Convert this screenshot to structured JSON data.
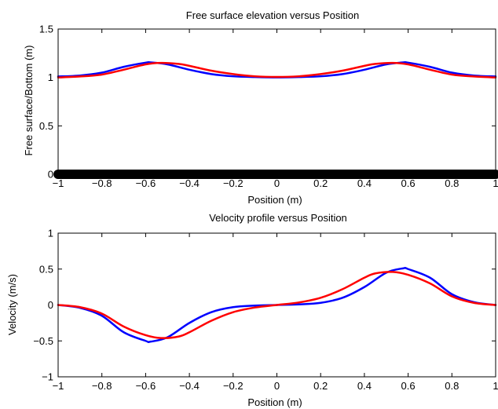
{
  "chart_data": [
    {
      "type": "line",
      "title": "Free surface elevation versus Position",
      "xlabel": "Position (m)",
      "ylabel": "Free surface/Bottom (m)",
      "xlim": [
        -1,
        1
      ],
      "ylim": [
        0,
        1.5
      ],
      "xticks": [
        -1,
        -0.8,
        -0.6,
        -0.4,
        -0.2,
        0,
        0.2,
        0.4,
        0.6,
        0.8,
        1
      ],
      "yticks": [
        0,
        0.5,
        1,
        1.5
      ],
      "xtick_labels": [
        "−1",
        "−0.8",
        "−0.6",
        "−0.4",
        "−0.2",
        "0",
        "0.2",
        "0.4",
        "0.6",
        "0.8",
        "1"
      ],
      "ytick_labels": [
        "0",
        "0.5",
        "1",
        "1.5"
      ],
      "grid": false,
      "legend": false,
      "series": [
        {
          "color": "#0000ff",
          "x": [
            -1,
            -0.9,
            -0.8,
            -0.7,
            -0.6,
            -0.577,
            -0.5,
            -0.4,
            -0.3,
            -0.2,
            -0.1,
            0,
            0.1,
            0.2,
            0.3,
            0.4,
            0.5,
            0.577,
            0.6,
            0.7,
            0.8,
            0.9,
            1
          ],
          "y": [
            1.01,
            1.02,
            1.05,
            1.11,
            1.153,
            1.155,
            1.135,
            1.08,
            1.035,
            1.012,
            1.004,
            1.0,
            1.004,
            1.012,
            1.035,
            1.08,
            1.135,
            1.155,
            1.153,
            1.11,
            1.05,
            1.02,
            1.01
          ]
        },
        {
          "color": "#ff0000",
          "x": [
            -1,
            -0.9,
            -0.8,
            -0.7,
            -0.6,
            -0.53,
            -0.45,
            -0.4,
            -0.3,
            -0.2,
            -0.1,
            0,
            0.1,
            0.2,
            0.3,
            0.4,
            0.45,
            0.53,
            0.6,
            0.7,
            0.8,
            0.9,
            1
          ],
          "y": [
            1.0,
            1.01,
            1.03,
            1.08,
            1.135,
            1.15,
            1.14,
            1.12,
            1.07,
            1.035,
            1.012,
            1.005,
            1.012,
            1.035,
            1.07,
            1.12,
            1.14,
            1.15,
            1.135,
            1.08,
            1.03,
            1.01,
            1.0
          ]
        },
        {
          "color": "#000000",
          "x": [
            -1,
            1
          ],
          "y": [
            0,
            0
          ]
        }
      ]
    },
    {
      "type": "line",
      "title": "Velocity profile versus Position",
      "xlabel": "Position (m)",
      "ylabel": "Velocity (m/s)",
      "xlim": [
        -1,
        1
      ],
      "ylim": [
        -1,
        1
      ],
      "xticks": [
        -1,
        -0.8,
        -0.6,
        -0.4,
        -0.2,
        0,
        0.2,
        0.4,
        0.6,
        0.8,
        1
      ],
      "yticks": [
        -1,
        -0.5,
        0,
        0.5,
        1
      ],
      "xtick_labels": [
        "−1",
        "−0.8",
        "−0.6",
        "−0.4",
        "−0.2",
        "0",
        "0.2",
        "0.4",
        "0.6",
        "0.8",
        "1"
      ],
      "ytick_labels": [
        "−1",
        "−0.5",
        "0",
        "0.5",
        "1"
      ],
      "grid": false,
      "legend": false,
      "series": [
        {
          "color": "#0000ff",
          "x": [
            -1,
            -0.9,
            -0.8,
            -0.7,
            -0.6,
            -0.577,
            -0.5,
            -0.4,
            -0.3,
            -0.2,
            -0.1,
            0,
            0.1,
            0.2,
            0.3,
            0.4,
            0.5,
            0.577,
            0.6,
            0.7,
            0.8,
            0.9,
            1
          ],
          "y": [
            0.0,
            -0.04,
            -0.15,
            -0.38,
            -0.5,
            -0.51,
            -0.45,
            -0.25,
            -0.1,
            -0.03,
            -0.008,
            0.0,
            0.008,
            0.03,
            0.1,
            0.25,
            0.45,
            0.51,
            0.5,
            0.38,
            0.15,
            0.04,
            0.0
          ]
        },
        {
          "color": "#ff0000",
          "x": [
            -1,
            -0.9,
            -0.8,
            -0.7,
            -0.6,
            -0.53,
            -0.45,
            -0.4,
            -0.3,
            -0.2,
            -0.1,
            0,
            0.1,
            0.2,
            0.3,
            0.4,
            0.45,
            0.53,
            0.6,
            0.7,
            0.8,
            0.9,
            1
          ],
          "y": [
            0.0,
            -0.03,
            -0.12,
            -0.3,
            -0.42,
            -0.46,
            -0.44,
            -0.38,
            -0.22,
            -0.1,
            -0.035,
            0.0,
            0.035,
            0.1,
            0.22,
            0.38,
            0.44,
            0.46,
            0.42,
            0.3,
            0.12,
            0.03,
            0.0
          ]
        }
      ]
    }
  ]
}
